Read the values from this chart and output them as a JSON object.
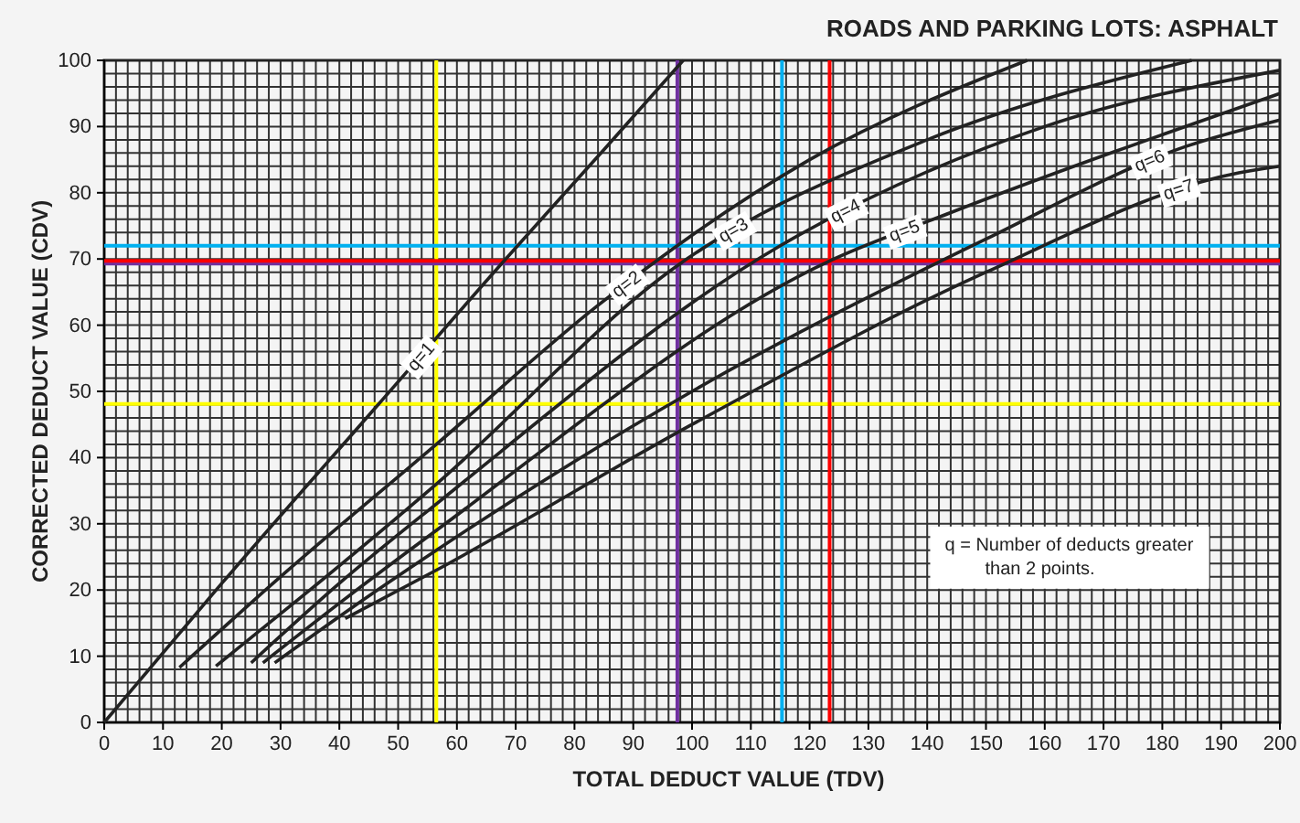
{
  "chart_data": {
    "type": "line",
    "title": "ROADS AND PARKING LOTS:  ASPHALT",
    "xlabel": "TOTAL DEDUCT VALUE (TDV)",
    "ylabel": "CORRECTED DEDUCT VALUE (CDV)",
    "xlim": [
      0,
      200
    ],
    "ylim": [
      0,
      100
    ],
    "xticks": [
      0,
      10,
      20,
      30,
      40,
      50,
      60,
      70,
      80,
      90,
      100,
      110,
      120,
      130,
      140,
      150,
      160,
      170,
      180,
      190,
      200
    ],
    "yticks": [
      0,
      10,
      20,
      30,
      40,
      50,
      60,
      70,
      80,
      90,
      100
    ],
    "grid": true,
    "line_style": "solid",
    "marker": "none",
    "series": [
      {
        "name": "q=1",
        "color": "#222222",
        "x": [
          0,
          20,
          46.6,
          68.3,
          85,
          98.5
        ],
        "values": [
          0,
          21,
          48,
          70,
          86.5,
          100
        ]
      },
      {
        "name": "q=2",
        "color": "#222222",
        "x": [
          12.8,
          30,
          56.5,
          84,
          120,
          157
        ],
        "values": [
          8.3,
          22,
          42,
          63,
          85,
          100
        ]
      },
      {
        "name": "q=3",
        "color": "#222222",
        "x": [
          19,
          35,
          56.5,
          97.5,
          140,
          185
        ],
        "values": [
          8.5,
          20,
          36,
          69,
          88,
          100
        ]
      },
      {
        "name": "q=4",
        "color": "#222222",
        "x": [
          25,
          40,
          56.5,
          115,
          160,
          200
        ],
        "values": [
          9,
          21,
          33,
          72,
          90,
          98.5
        ]
      },
      {
        "name": "q=5",
        "color": "#222222",
        "x": [
          27,
          40,
          56.5,
          123.4,
          144,
          200
        ],
        "values": [
          9,
          18,
          29,
          69.7,
          77,
          95
        ]
      },
      {
        "name": "q=6",
        "color": "#222222",
        "x": [
          29,
          40,
          56.5,
          100,
          150,
          184,
          200
        ],
        "values": [
          9,
          16,
          26,
          50,
          73,
          87,
          91
        ]
      },
      {
        "name": "q=7",
        "color": "#222222",
        "x": [
          41,
          56.5,
          100,
          150,
          193,
          200
        ],
        "values": [
          15.7,
          23,
          45,
          68,
          83,
          84
        ]
      }
    ],
    "ref_lines": [
      {
        "axis": "x",
        "value": 56.5,
        "color": "#ffff00"
      },
      {
        "axis": "y",
        "value": 48.1,
        "color": "#ffff00"
      },
      {
        "axis": "x",
        "value": 97.5,
        "color": "#7030a0"
      },
      {
        "axis": "y",
        "value": 69.3,
        "color": "#7030a0"
      },
      {
        "axis": "x",
        "value": 115.3,
        "color": "#00b0f0"
      },
      {
        "axis": "y",
        "value": 72,
        "color": "#00b0f0"
      },
      {
        "axis": "x",
        "value": 123.4,
        "color": "#ff0000"
      },
      {
        "axis": "y",
        "value": 69.7,
        "color": "#ff0000"
      }
    ],
    "annotations": [
      "q = Number of deducts greater than 2 points."
    ]
  }
}
